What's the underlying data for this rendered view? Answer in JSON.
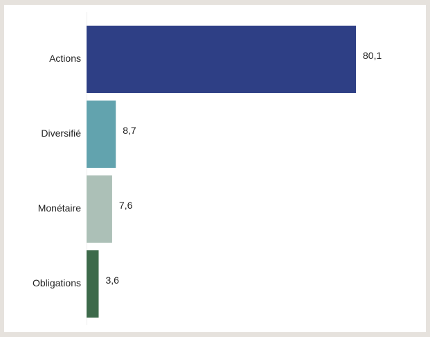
{
  "chart_data": {
    "type": "bar",
    "orientation": "horizontal",
    "categories": [
      "Actions",
      "Diversifié",
      "Monétaire",
      "Obligations"
    ],
    "values": [
      80.1,
      8.7,
      7.6,
      3.6
    ],
    "value_labels": [
      "80,1",
      "8,7",
      "7,6",
      "3,6"
    ],
    "colors": [
      "#2e3f85",
      "#62a3ae",
      "#acc0b7",
      "#3d6a4a"
    ],
    "title": "",
    "xlabel": "",
    "ylabel": "",
    "xlim": [
      0,
      80.1
    ],
    "grid": false,
    "legend": "none"
  }
}
